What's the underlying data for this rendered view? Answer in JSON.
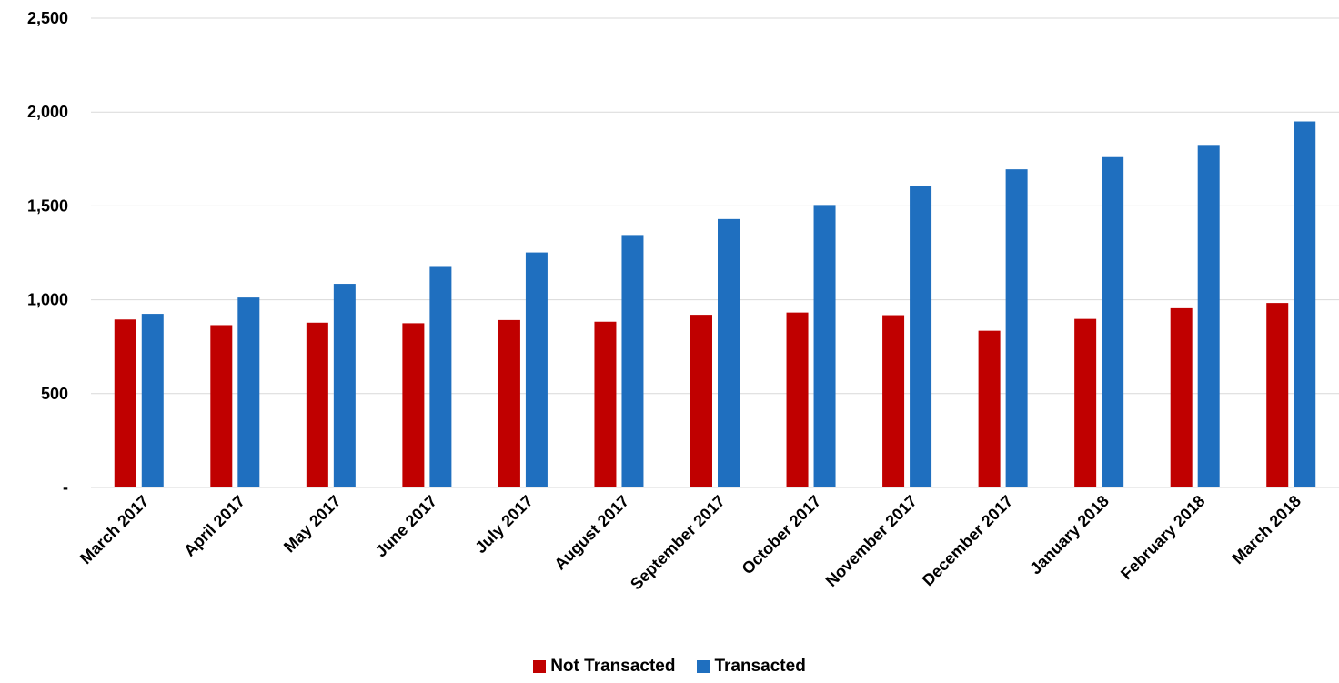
{
  "chart_data": {
    "type": "bar",
    "categories": [
      "March 2017",
      "April 2017",
      "May 2017",
      "June 2017",
      "July 2017",
      "August 2017",
      "September 2017",
      "October 2017",
      "November 2017",
      "December 2017",
      "January 2018",
      "February 2018",
      "March 2018"
    ],
    "series": [
      {
        "name": "Not Transacted",
        "color": "#C00000",
        "values": [
          895,
          865,
          878,
          875,
          892,
          883,
          920,
          932,
          918,
          835,
          898,
          955,
          983
        ]
      },
      {
        "name": "Transacted",
        "color": "#1F6FBF",
        "values": [
          925,
          1012,
          1085,
          1175,
          1252,
          1345,
          1430,
          1505,
          1605,
          1695,
          1760,
          1825,
          1950
        ]
      }
    ],
    "title": "",
    "xlabel": "",
    "ylabel": "",
    "ylim": [
      0,
      2500
    ],
    "yticks": [
      0,
      500,
      1000,
      1500,
      2000,
      2500
    ],
    "ytick_labels": [
      "-",
      "500",
      "1,000",
      "1,500",
      "2,000",
      "2,500"
    ],
    "grid": true,
    "legend": "bottom-center"
  }
}
